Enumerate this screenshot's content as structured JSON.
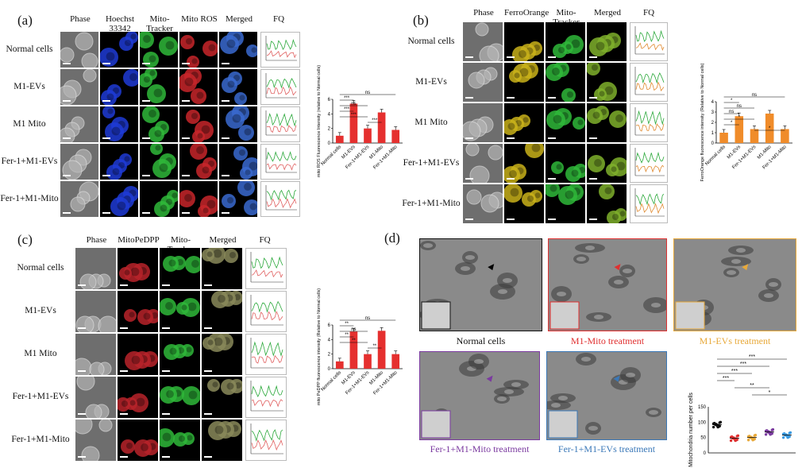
{
  "panels": {
    "a": {
      "label": "(a)",
      "columns": [
        "Phase",
        "Hoechst 33342",
        "Mito-Tracker Green",
        "Mito ROS",
        "Merged",
        "FQ"
      ],
      "rows": [
        "Normal cells",
        "M1-EVs",
        "M1 Mito",
        "Fer-1+M1-EVs",
        "Fer-1+M1-Mito"
      ],
      "channel_colors": [
        "#8d8d8d",
        "#1f3bd6",
        "#2fb83a",
        "#c8262a",
        "#3a6ad0"
      ],
      "chart": {
        "ylabel": "mito ROS Fluorescence Intensity (relative to Normal cells)",
        "color": "#e5302f",
        "ylim": [
          0,
          6
        ],
        "yticks": [
          "0",
          "2",
          "4",
          "6"
        ],
        "categories": [
          "Normal cells",
          "M1-EVs",
          "Fer-1+M1-EVs",
          "M1-Mito",
          "Fer-1+M1-Mito"
        ],
        "values": [
          1,
          5.4,
          2,
          4.2,
          1.8
        ],
        "sig": [
          "ns",
          "***",
          "ns",
          "***",
          "***",
          "***"
        ]
      }
    },
    "b": {
      "label": "(b)",
      "columns": [
        "Phase",
        "FerroOrange",
        "Mito-Tracker Green",
        "Merged",
        "FQ"
      ],
      "rows": [
        "Normal cells",
        "M1-EVs",
        "M1 Mito",
        "Fer-1+M1-EVs",
        "Fer-1+M1-Mito"
      ],
      "channel_colors": [
        "#8d8d8d",
        "#c9b21a",
        "#2fb83a",
        "#7fb02c"
      ],
      "chart": {
        "ylabel": "FerroOrange fluorescence intensity (Relative to Normal cells)",
        "color": "#f08c2a",
        "ylim": [
          0,
          4
        ],
        "yticks": [
          "0",
          "1",
          "2",
          "3",
          "4"
        ],
        "categories": [
          "Normal cells",
          "M1-EVs",
          "Fer-1+M1-EVs",
          "M1-Mito",
          "Fer-1+M1-Mito"
        ],
        "values": [
          1,
          2.6,
          1.35,
          2.85,
          1.35
        ],
        "sig": [
          "ns",
          "*",
          "ns",
          "ns",
          "*",
          "*",
          "*"
        ]
      }
    },
    "c": {
      "label": "(c)",
      "columns": [
        "Phase",
        "MitoPeDPP",
        "Mito-Tracker Green",
        "Merged",
        "FQ"
      ],
      "rows": [
        "Normal cells",
        "M1-EVs",
        "M1 Mito",
        "Fer-1+M1-EVs",
        "Fer-1+M1-Mito"
      ],
      "channel_colors": [
        "#8d8d8d",
        "#b8232a",
        "#2fb83a",
        "#8a8a5a"
      ],
      "chart": {
        "ylabel": "mito PeDPP fluorescence intensity (Relative to Normal cells)",
        "color": "#e5302f",
        "ylim": [
          0,
          6
        ],
        "yticks": [
          "0",
          "2",
          "4",
          "6"
        ],
        "categories": [
          "Normal cells",
          "M1-EVs",
          "Fer-1+M1-EVs",
          "M1-Mito",
          "Fer-1+M1-Mito"
        ],
        "values": [
          1,
          5.1,
          2,
          5.2,
          2
        ],
        "sig": [
          "ns",
          "**",
          "ns",
          "**",
          "**",
          "**"
        ]
      }
    },
    "d": {
      "label": "(d)",
      "images": [
        {
          "label": "Normal cells",
          "color": "#111111"
        },
        {
          "label": "M1-Mito treatment",
          "color": "#e03030"
        },
        {
          "label": "M1-EVs treatment",
          "color": "#e8a93a"
        },
        {
          "label": "Fer-1+M1-Mito treatment",
          "color": "#7b3aa0"
        },
        {
          "label": "Fer-1+M1-EVs treatment",
          "color": "#3a78b8"
        }
      ],
      "chart": {
        "ylabel": "Mitochondria number per cells",
        "ylim": [
          0,
          150
        ],
        "yticks": [
          "0",
          "50",
          "100",
          "150"
        ],
        "categories": [
          "Normal cells",
          "M1-Mito",
          "M1-EVs",
          "Fer-1+M1-Mito",
          "Fer-1+M1-EVs"
        ],
        "values": [
          92,
          48,
          50,
          68,
          58
        ],
        "colors": [
          "#111111",
          "#e03030",
          "#e8a93a",
          "#7b3aa0",
          "#3a9ae0"
        ],
        "sig": [
          "***",
          "***",
          "***",
          "***",
          "**",
          "*"
        ]
      }
    }
  },
  "chart_data": [
    {
      "type": "bar",
      "title": "(a)",
      "categories": [
        "Normal cells",
        "M1-EVs",
        "Fer-1+M1-EVs",
        "M1-Mito",
        "Fer-1+M1-Mito"
      ],
      "values": [
        1,
        5.4,
        2,
        4.2,
        1.8
      ],
      "ylabel": "mito ROS Fluorescence Intensity (relative to Normal cells)",
      "ylim": [
        0,
        6
      ]
    },
    {
      "type": "bar",
      "title": "(b)",
      "categories": [
        "Normal cells",
        "M1-EVs",
        "Fer-1+M1-EVs",
        "M1-Mito",
        "Fer-1+M1-Mito"
      ],
      "values": [
        1,
        2.6,
        1.35,
        2.85,
        1.35
      ],
      "ylabel": "FerroOrange fluorescence intensity (Relative to Normal cells)",
      "ylim": [
        0,
        4
      ]
    },
    {
      "type": "bar",
      "title": "(c)",
      "categories": [
        "Normal cells",
        "M1-EVs",
        "Fer-1+M1-EVs",
        "M1-Mito",
        "Fer-1+M1-Mito"
      ],
      "values": [
        1,
        5.1,
        2,
        5.2,
        2
      ],
      "ylabel": "mito PeDPP fluorescence intensity (Relative to Normal cells)",
      "ylim": [
        0,
        6
      ]
    },
    {
      "type": "scatter",
      "title": "(d)",
      "categories": [
        "Normal cells",
        "M1-Mito",
        "M1-EVs",
        "Fer-1+M1-Mito",
        "Fer-1+M1-EVs"
      ],
      "values": [
        92,
        48,
        50,
        68,
        58
      ],
      "ylabel": "Mitochondria number per cells",
      "ylim": [
        0,
        150
      ]
    }
  ]
}
